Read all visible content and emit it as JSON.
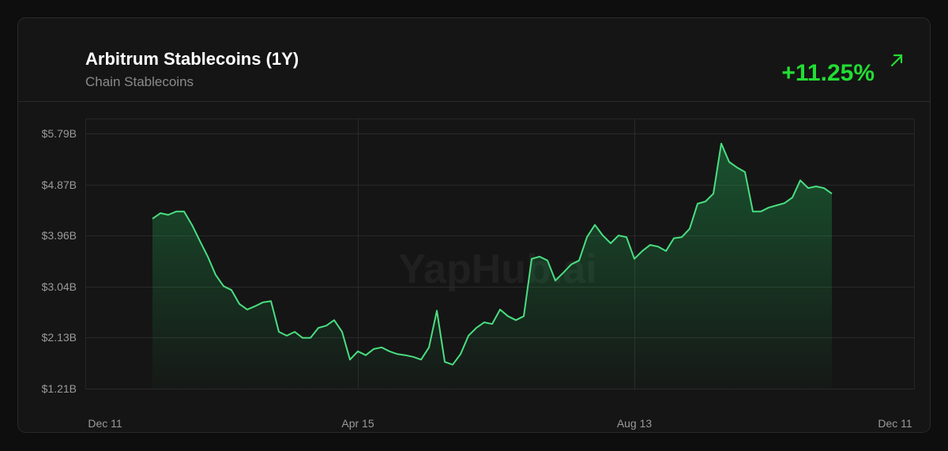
{
  "chart_data": {
    "type": "area",
    "title": "Arbitrum Stablecoins (1Y)",
    "subtitle": "Chain Stablecoins",
    "change": "+11.25%",
    "watermark": "YapHub.ai",
    "categories": [
      "Dec 11",
      null,
      null,
      null,
      null,
      null,
      null,
      null,
      null,
      null,
      null,
      null,
      null,
      null,
      null,
      null,
      null,
      null,
      null,
      null,
      null,
      null,
      null,
      null,
      null,
      null,
      null,
      null,
      null,
      null,
      null,
      null,
      "Apr 15",
      null,
      null,
      null,
      null,
      null,
      null,
      null,
      null,
      null,
      null,
      null,
      null,
      null,
      null,
      null,
      null,
      null,
      null,
      null,
      null,
      null,
      null,
      null,
      null,
      null,
      null,
      null,
      null,
      null,
      null,
      null,
      null,
      null,
      null,
      "Aug 13",
      null,
      null,
      null,
      null,
      null,
      null,
      null,
      null,
      null,
      null,
      null,
      null,
      null,
      null,
      null,
      null,
      null,
      null,
      null,
      null,
      null,
      null,
      null,
      null,
      null,
      null,
      null,
      null,
      null,
      null,
      null,
      null,
      "Dec 11"
    ],
    "series": [
      {
        "color": "#4ade80",
        "values": [
          null,
          null,
          null,
          null,
          null,
          null,
          4.26,
          4.36,
          4.33,
          4.39,
          4.39,
          4.15,
          3.86,
          3.58,
          3.25,
          3.05,
          2.98,
          2.73,
          2.63,
          2.69,
          2.76,
          2.78,
          2.23,
          2.16,
          2.23,
          2.12,
          2.12,
          2.3,
          2.34,
          2.44,
          2.23,
          1.73,
          1.88,
          1.81,
          1.92,
          1.95,
          1.88,
          1.83,
          1.81,
          1.78,
          1.73,
          1.95,
          2.61,
          1.69,
          1.64,
          1.83,
          2.16,
          2.3,
          2.4,
          2.37,
          2.63,
          2.51,
          2.44,
          2.51,
          3.54,
          3.58,
          3.51,
          3.15,
          3.29,
          3.44,
          3.51,
          3.93,
          4.15,
          3.96,
          3.82,
          3.96,
          3.93,
          3.54,
          3.68,
          3.79,
          3.76,
          3.68,
          3.91,
          3.93,
          4.08,
          4.53,
          4.57,
          4.71,
          5.61,
          5.28,
          5.18,
          5.1,
          4.39,
          4.39,
          4.46,
          4.5,
          4.54,
          4.64,
          4.95,
          4.81,
          4.84,
          4.81,
          4.71,
          null,
          null,
          null,
          null,
          null,
          null,
          null,
          null
        ]
      }
    ],
    "ylim": [
      1.21,
      6.06
    ],
    "yticks": [
      {
        "value": 1.21,
        "label": "$1.21B"
      },
      {
        "value": 2.13,
        "label": "$2.13B"
      },
      {
        "value": 3.04,
        "label": "$3.04B"
      },
      {
        "value": 3.96,
        "label": "$3.96B"
      },
      {
        "value": 4.87,
        "label": "$4.87B"
      },
      {
        "value": 5.79,
        "label": "$5.79B"
      }
    ],
    "grid": true
  }
}
